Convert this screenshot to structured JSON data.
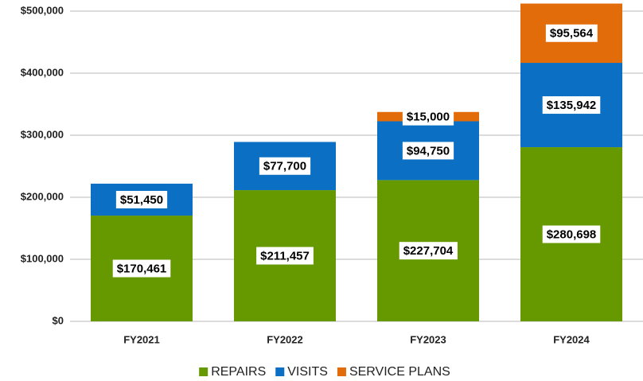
{
  "chart_data": {
    "type": "stacked_bar",
    "categories": [
      "FY2021",
      "FY2022",
      "FY2023",
      "FY2024"
    ],
    "series": [
      {
        "name": "REPAIRS",
        "color": "#669900",
        "values": [
          170461,
          211457,
          227704,
          280698
        ],
        "value_labels": [
          "$170,461",
          "$211,457",
          "$227,704",
          "$280,698"
        ]
      },
      {
        "name": "VISITS",
        "color": "#0b6fc3",
        "values": [
          51450,
          77700,
          94750,
          135942
        ],
        "value_labels": [
          "$51,450",
          "$77,700",
          "$94,750",
          "$135,942"
        ]
      },
      {
        "name": "SERVICE PLANS",
        "color": "#e36c0a",
        "values": [
          null,
          null,
          15000,
          95564
        ],
        "value_labels": [
          null,
          null,
          "$15,000",
          "$95,564"
        ]
      }
    ],
    "ylim": [
      0,
      500000
    ],
    "yticks": [
      {
        "value": 0,
        "label": "$0"
      },
      {
        "value": 100000,
        "label": "$100,000"
      },
      {
        "value": 200000,
        "label": "$200,000"
      },
      {
        "value": 300000,
        "label": "$300,000"
      },
      {
        "value": 400000,
        "label": "$400,000"
      },
      {
        "value": 500000,
        "label": "$500,000"
      }
    ],
    "grid": true,
    "legend": "bottom"
  }
}
